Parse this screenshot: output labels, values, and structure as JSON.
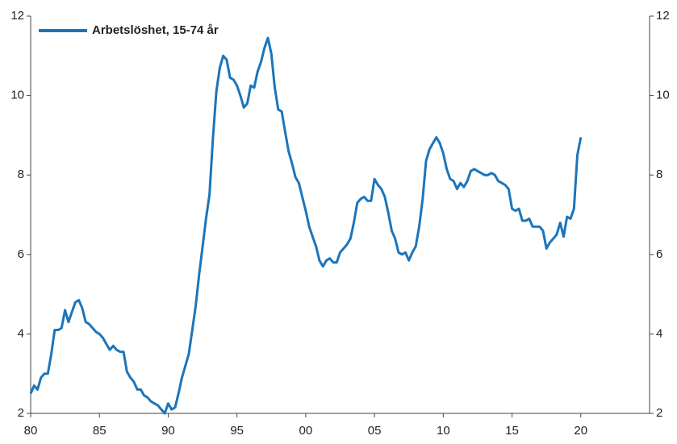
{
  "chart_data": {
    "type": "line",
    "series": [
      {
        "name": "Arbetslöshet, 15-74 år",
        "color": "#1b75bb",
        "values": [
          2.5,
          2.7,
          2.6,
          2.9,
          3.0,
          3.0,
          3.5,
          4.1,
          4.1,
          4.15,
          4.6,
          4.3,
          4.55,
          4.8,
          4.85,
          4.65,
          4.3,
          4.25,
          4.15,
          4.05,
          4.0,
          3.9,
          3.75,
          3.6,
          3.7,
          3.6,
          3.55,
          3.55,
          3.05,
          2.9,
          2.8,
          2.6,
          2.6,
          2.45,
          2.4,
          2.3,
          2.25,
          2.2,
          2.1,
          2.0,
          2.25,
          2.1,
          2.15,
          2.5,
          2.9,
          3.2,
          3.5,
          4.1,
          4.7,
          5.5,
          6.2,
          6.9,
          7.5,
          8.9,
          10.1,
          10.7,
          11.0,
          10.9,
          10.45,
          10.4,
          10.25,
          10.0,
          9.7,
          9.8,
          10.25,
          10.2,
          10.6,
          10.85,
          11.2,
          11.45,
          11.05,
          10.2,
          9.65,
          9.6,
          9.1,
          8.6,
          8.3,
          7.95,
          7.8,
          7.45,
          7.1,
          6.7,
          6.45,
          6.2,
          5.85,
          5.7,
          5.85,
          5.9,
          5.8,
          5.8,
          6.05,
          6.15,
          6.25,
          6.4,
          6.8,
          7.3,
          7.4,
          7.45,
          7.35,
          7.35,
          7.9,
          7.75,
          7.65,
          7.45,
          7.05,
          6.6,
          6.4,
          6.05,
          6.0,
          6.05,
          5.85,
          6.05,
          6.2,
          6.7,
          7.4,
          8.35,
          8.65,
          8.8,
          8.95,
          8.8,
          8.55,
          8.15,
          7.9,
          7.85,
          7.65,
          7.8,
          7.7,
          7.85,
          8.1,
          8.15,
          8.1,
          8.05,
          8.0,
          8.0,
          8.05,
          8.0,
          7.85,
          7.8,
          7.75,
          7.65,
          7.15,
          7.1,
          7.15,
          6.85,
          6.85,
          6.9,
          6.7,
          6.7,
          6.7,
          6.6,
          6.15,
          6.3,
          6.4,
          6.5,
          6.8,
          6.45,
          6.95,
          6.9,
          7.15,
          8.5,
          8.95
        ]
      }
    ],
    "x": [
      1980,
      1980.25,
      1980.5,
      1980.75,
      1981,
      1981.25,
      1981.5,
      1981.75,
      1982,
      1982.25,
      1982.5,
      1982.75,
      1983,
      1983.25,
      1983.5,
      1983.75,
      1984,
      1984.25,
      1984.5,
      1984.75,
      1985,
      1985.25,
      1985.5,
      1985.75,
      1986,
      1986.25,
      1986.5,
      1986.75,
      1987,
      1987.25,
      1987.5,
      1987.75,
      1988,
      1988.25,
      1988.5,
      1988.75,
      1989,
      1989.25,
      1989.5,
      1989.75,
      1990,
      1990.25,
      1990.5,
      1990.75,
      1991,
      1991.25,
      1991.5,
      1991.75,
      1992,
      1992.25,
      1992.5,
      1992.75,
      1993,
      1993.25,
      1993.5,
      1993.75,
      1994,
      1994.25,
      1994.5,
      1994.75,
      1995,
      1995.25,
      1995.5,
      1995.75,
      1996,
      1996.25,
      1996.5,
      1996.75,
      1997,
      1997.25,
      1997.5,
      1997.75,
      1998,
      1998.25,
      1998.5,
      1998.75,
      1999,
      1999.25,
      1999.5,
      1999.75,
      2000,
      2000.25,
      2000.5,
      2000.75,
      2001,
      2001.25,
      2001.5,
      2001.75,
      2002,
      2002.25,
      2002.5,
      2002.75,
      2003,
      2003.25,
      2003.5,
      2003.75,
      2004,
      2004.25,
      2004.5,
      2004.75,
      2005,
      2005.25,
      2005.5,
      2005.75,
      2006,
      2006.25,
      2006.5,
      2006.75,
      2007,
      2007.25,
      2007.5,
      2007.75,
      2008,
      2008.25,
      2008.5,
      2008.75,
      2009,
      2009.25,
      2009.5,
      2009.75,
      2010,
      2010.25,
      2010.5,
      2010.75,
      2011,
      2011.25,
      2011.5,
      2011.75,
      2012,
      2012.25,
      2012.5,
      2012.75,
      2013,
      2013.25,
      2013.5,
      2013.75,
      2014,
      2014.25,
      2014.5,
      2014.75,
      2015,
      2015.25,
      2015.5,
      2015.75,
      2016,
      2016.25,
      2016.5,
      2016.75,
      2017,
      2017.25,
      2017.5,
      2017.75,
      2018,
      2018.25,
      2018.5,
      2018.75,
      2019,
      2019.25,
      2019.5,
      2019.75,
      2020
    ],
    "xlim": [
      1980,
      2025
    ],
    "xticks": [
      {
        "value": 1980,
        "label": "80"
      },
      {
        "value": 1985,
        "label": "85"
      },
      {
        "value": 1990,
        "label": "90"
      },
      {
        "value": 1995,
        "label": "95"
      },
      {
        "value": 2000,
        "label": "00"
      },
      {
        "value": 2005,
        "label": "05"
      },
      {
        "value": 2010,
        "label": "10"
      },
      {
        "value": 2015,
        "label": "15"
      },
      {
        "value": 2020,
        "label": "20"
      }
    ],
    "ylim": [
      2,
      12
    ],
    "yticks": [
      2,
      4,
      6,
      8,
      10,
      12
    ],
    "y2lim": [
      2,
      12
    ],
    "y2ticks": [
      2,
      4,
      6,
      8,
      10,
      12
    ],
    "legend": "top-left"
  }
}
